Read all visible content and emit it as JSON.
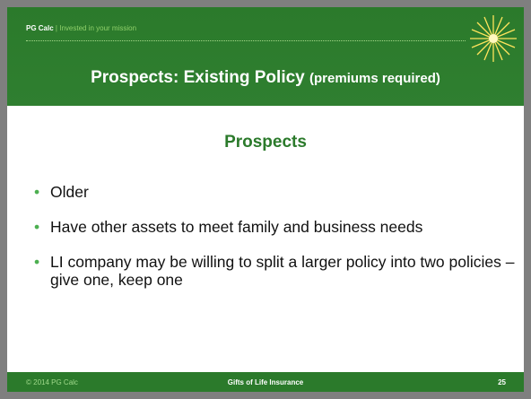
{
  "header": {
    "brand": "PG Calc",
    "separator": "|",
    "tagline": "Invested in your mission",
    "title": "Prospects: Existing Policy",
    "title_note": "(premiums required)"
  },
  "content": {
    "heading": "Prospects",
    "bullets": [
      "Older",
      "Have other assets to meet family and business needs",
      "LI company may be willing to split a larger policy into two policies – give one, keep one"
    ]
  },
  "footer": {
    "copyright": "© 2014 PG Calc",
    "title": "Gifts of Life Insurance",
    "page_number": 25
  }
}
